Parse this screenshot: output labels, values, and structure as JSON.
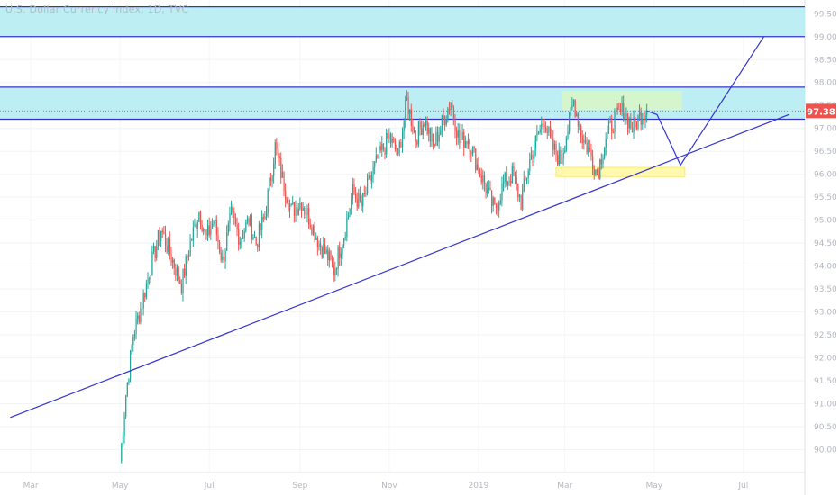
{
  "app": {
    "title": "U.S. Dollar Currency Index, 1D, TVC"
  },
  "chart_data": {
    "type": "candlestick",
    "title": "U.S. Dollar Currency Index, 1D, TVC",
    "xlabel": "",
    "ylabel": "",
    "ylim": [
      89.5,
      99.8
    ],
    "y_ticks": [
      "99.50",
      "99.00",
      "98.50",
      "98.00",
      "97.50",
      "97.00",
      "96.50",
      "96.00",
      "95.50",
      "95.00",
      "94.50",
      "94.00",
      "93.50",
      "93.00",
      "92.50",
      "92.00",
      "91.50",
      "91.00",
      "90.50",
      "90.00"
    ],
    "x_ticks": [
      "Mar",
      "May",
      "Jul",
      "Sep",
      "Nov",
      "2019",
      "Mar",
      "May",
      "Jul"
    ],
    "grid": true,
    "last_price": "97.38",
    "colors": {
      "up": "#26a69a",
      "down": "#ef5350",
      "trendline": "#3333cc",
      "zone_fill": "#b2ebf2",
      "zone_line": "#3333cc",
      "green_box": "#d7f5c8",
      "yellow_box": "#fff9b0",
      "price_tag": "#ef5350",
      "axis_text": "#b3b7c0"
    },
    "price_path": [
      [
        "2018-05-01",
        89.75
      ],
      [
        "2018-05-05",
        91.2
      ],
      [
        "2018-05-10",
        92.5
      ],
      [
        "2018-05-16",
        93.2
      ],
      [
        "2018-05-22",
        94.0
      ],
      [
        "2018-05-29",
        94.8
      ],
      [
        "2018-06-05",
        94.2
      ],
      [
        "2018-06-12",
        93.6
      ],
      [
        "2018-06-18",
        94.5
      ],
      [
        "2018-06-24",
        95.2
      ],
      [
        "2018-06-29",
        94.6
      ],
      [
        "2018-07-04",
        95.0
      ],
      [
        "2018-07-10",
        94.1
      ],
      [
        "2018-07-16",
        95.1
      ],
      [
        "2018-07-22",
        94.6
      ],
      [
        "2018-07-28",
        95.0
      ],
      [
        "2018-08-02",
        94.5
      ],
      [
        "2018-08-08",
        95.1
      ],
      [
        "2018-08-15",
        96.6
      ],
      [
        "2018-08-20",
        95.9
      ],
      [
        "2018-08-26",
        95.2
      ],
      [
        "2018-09-02",
        95.4
      ],
      [
        "2018-09-08",
        95.0
      ],
      [
        "2018-09-14",
        94.5
      ],
      [
        "2018-09-20",
        94.2
      ],
      [
        "2018-09-24",
        93.9
      ],
      [
        "2018-10-01",
        94.7
      ],
      [
        "2018-10-07",
        95.6
      ],
      [
        "2018-10-13",
        95.3
      ],
      [
        "2018-10-19",
        95.9
      ],
      [
        "2018-10-25",
        96.4
      ],
      [
        "2018-11-01",
        96.8
      ],
      [
        "2018-11-07",
        96.4
      ],
      [
        "2018-11-13",
        97.6
      ],
      [
        "2018-11-19",
        96.8
      ],
      [
        "2018-11-25",
        97.2
      ],
      [
        "2018-12-01",
        96.6
      ],
      [
        "2018-12-07",
        97.1
      ],
      [
        "2018-12-13",
        97.6
      ],
      [
        "2018-12-19",
        96.7
      ],
      [
        "2018-12-25",
        96.8
      ],
      [
        "2018-12-31",
        96.2
      ],
      [
        "2019-01-06",
        95.7
      ],
      [
        "2019-01-12",
        95.2
      ],
      [
        "2019-01-18",
        95.8
      ],
      [
        "2019-01-24",
        96.0
      ],
      [
        "2019-01-30",
        95.4
      ],
      [
        "2019-02-05",
        96.3
      ],
      [
        "2019-02-11",
        96.9
      ],
      [
        "2019-02-15",
        97.2
      ],
      [
        "2019-02-20",
        96.6
      ],
      [
        "2019-02-26",
        96.3
      ],
      [
        "2019-03-03",
        97.0
      ],
      [
        "2019-03-07",
        97.6
      ],
      [
        "2019-03-13",
        96.8
      ],
      [
        "2019-03-19",
        96.4
      ],
      [
        "2019-03-23",
        96.0
      ],
      [
        "2019-03-29",
        96.8
      ],
      [
        "2019-04-04",
        97.2
      ],
      [
        "2019-04-10",
        97.4
      ],
      [
        "2019-04-16",
        97.0
      ],
      [
        "2019-04-22",
        97.3
      ],
      [
        "2019-04-26",
        97.4
      ]
    ],
    "annotations": {
      "support_trendline": [
        [
          "2018-02-15",
          90.7
        ],
        [
          "2019-08-01",
          97.3
        ]
      ],
      "projection_path": [
        [
          "2019-04-26",
          97.38
        ],
        [
          "2019-05-03",
          97.3
        ],
        [
          "2019-05-19",
          96.2
        ],
        [
          "2019-07-15",
          99.0
        ]
      ],
      "zones": [
        {
          "from": 99.0,
          "to": 99.65
        },
        {
          "from": 97.2,
          "to": 97.9
        }
      ],
      "green_box": {
        "x0": "2019-02-27",
        "x1": "2019-05-20",
        "y0": 97.4,
        "y1": 97.82
      },
      "yellow_box": {
        "x0": "2019-02-23",
        "x1": "2019-05-22",
        "y0": 95.95,
        "y1": 96.15
      },
      "last_price_line": 97.38
    }
  }
}
